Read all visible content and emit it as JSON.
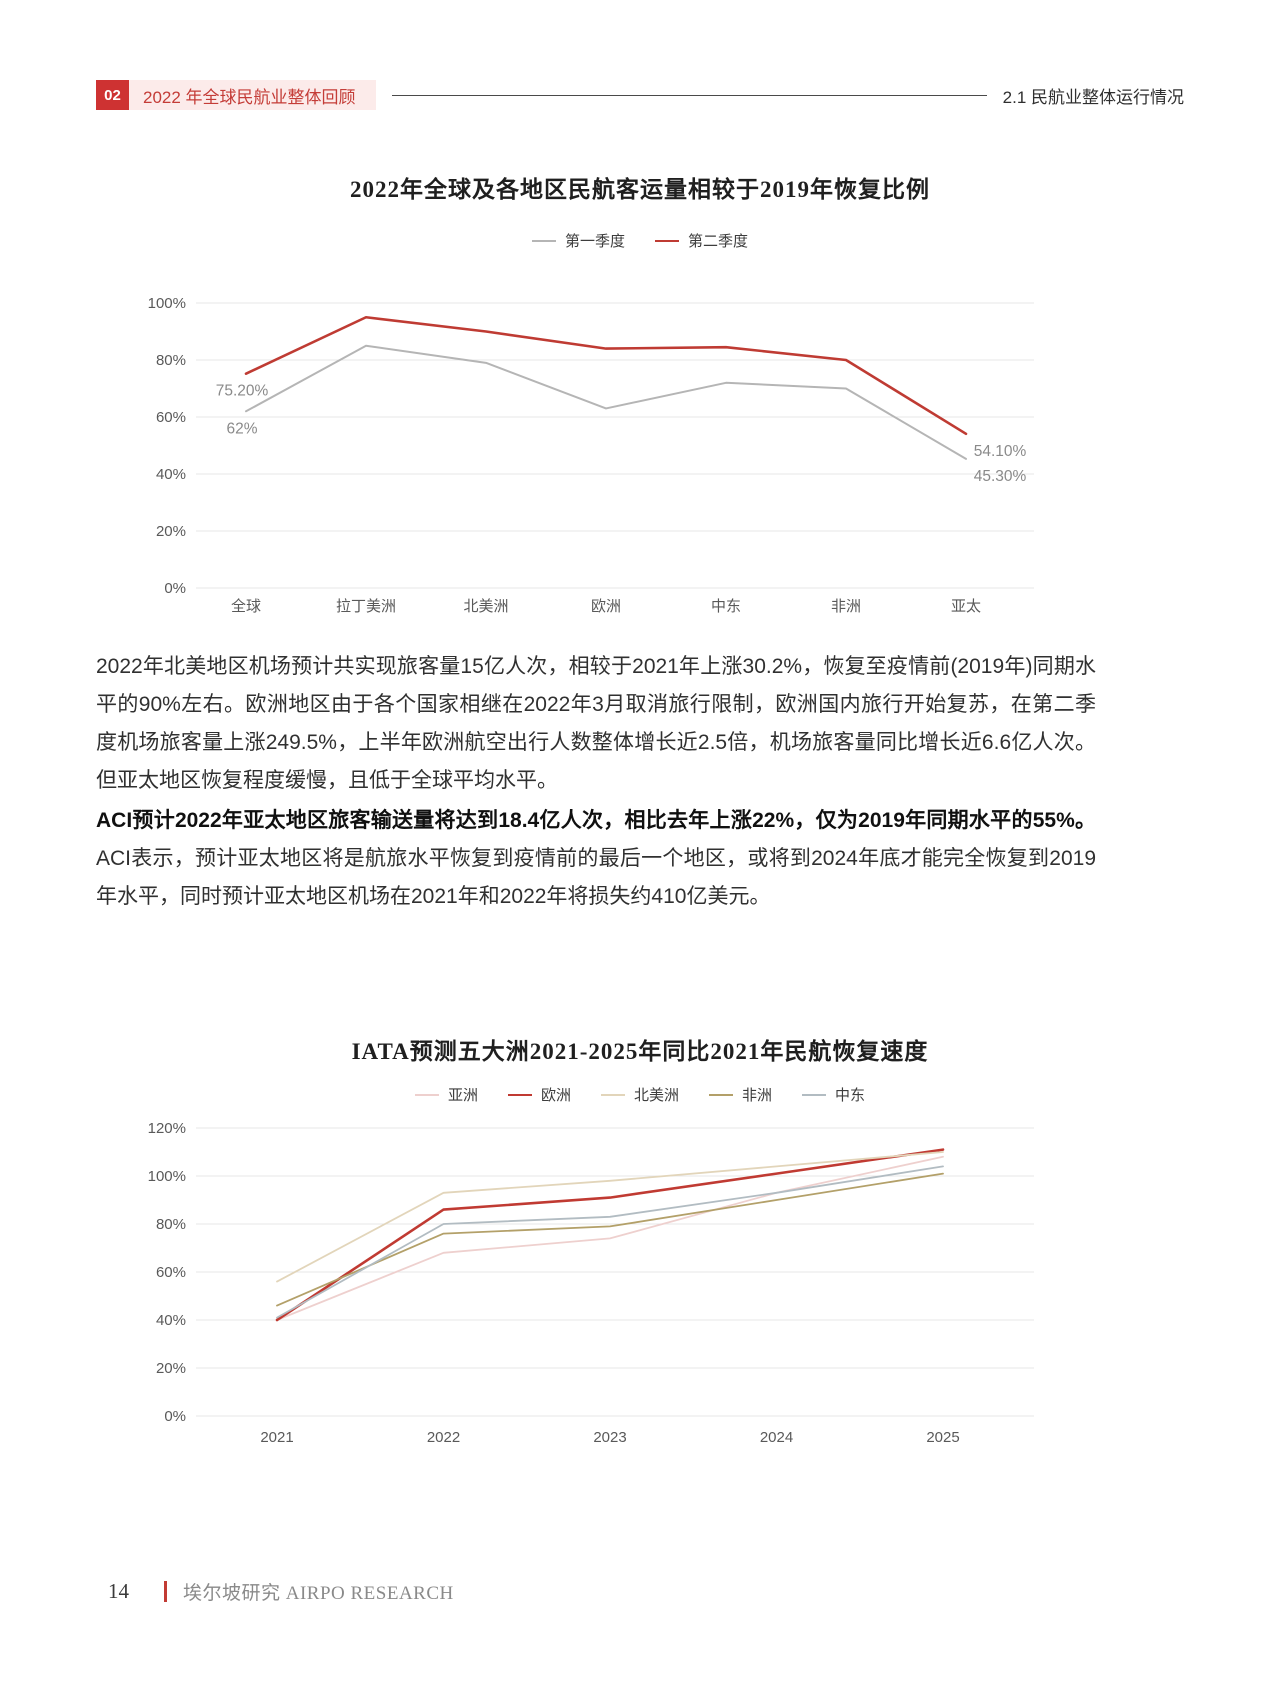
{
  "header": {
    "chapter_badge": "02",
    "chapter_title": "2022 年全球民航业整体回顾",
    "section_title": "2.1 民航业整体运行情况"
  },
  "chart_data": [
    {
      "type": "line",
      "title": "2022年全球及各地区民航客运量相较于2019年恢复比例",
      "categories": [
        "全球",
        "拉丁美洲",
        "北美洲",
        "欧洲",
        "中东",
        "非洲",
        "亚太"
      ],
      "ylim": [
        0,
        100
      ],
      "yticks": [
        0,
        20,
        40,
        60,
        80,
        100
      ],
      "ytick_suffix": "%",
      "grid": "horizontal",
      "legend_position": "top",
      "series": [
        {
          "name": "第一季度",
          "color": "#b5b5b5",
          "width": 2,
          "values": [
            62,
            85,
            79,
            63,
            72,
            70,
            45.3
          ],
          "point_labels": {
            "0": "62%",
            "6": "45.30%"
          }
        },
        {
          "name": "第二季度",
          "color": "#bf3b33",
          "width": 2.6,
          "values": [
            75.2,
            95,
            90,
            84,
            84.5,
            80,
            54.1
          ],
          "point_labels": {
            "0": "75.20%",
            "6": "54.10%"
          }
        }
      ]
    },
    {
      "type": "line",
      "title": "IATA预测五大洲2021-2025年同比2021年民航恢复速度",
      "categories": [
        "2021",
        "2022",
        "2023",
        "2024",
        "2025"
      ],
      "ylim": [
        0,
        120
      ],
      "yticks": [
        0,
        20,
        40,
        60,
        80,
        100,
        120
      ],
      "ytick_suffix": "%",
      "grid": "horizontal",
      "legend_position": "top",
      "series": [
        {
          "name": "亚洲",
          "color": "#eed0ce",
          "width": 1.8,
          "values": [
            40,
            68,
            74,
            93,
            108
          ]
        },
        {
          "name": "欧洲",
          "color": "#c03a32",
          "width": 2.6,
          "values": [
            40,
            86,
            91,
            101,
            111
          ]
        },
        {
          "name": "北美洲",
          "color": "#e2d5ba",
          "width": 1.8,
          "values": [
            56,
            93,
            98,
            104,
            110
          ]
        },
        {
          "name": "非洲",
          "color": "#b3a069",
          "width": 1.8,
          "values": [
            46,
            76,
            79,
            90,
            101
          ]
        },
        {
          "name": "中东",
          "color": "#b2bcc2",
          "width": 1.8,
          "values": [
            41,
            80,
            83,
            93,
            104
          ]
        }
      ]
    }
  ],
  "paragraphs": {
    "p1": "2022年北美地区机场预计共实现旅客量15亿人次，相较于2021年上涨30.2%，恢复至疫情前(2019年)同期水平的90%左右。欧洲地区由于各个国家相继在2022年3月取消旅行限制，欧洲国内旅行开始复苏，在第二季度机场旅客量上涨249.5%，上半年欧洲航空出行人数整体增长近2.5倍，机场旅客量同比增长近6.6亿人次。但亚太地区恢复程度缓慢，且低于全球平均水平。",
    "p2_bold": "ACI预计2022年亚太地区旅客输送量将达到18.4亿人次，相比去年上涨22%，仅为2019年同期水平的55%。",
    "p2_rest": "ACI表示，预计亚太地区将是航旅水平恢复到疫情前的最后一个地区，或将到2024年底才能完全恢复到2019年水平，同时预计亚太地区机场在2021年和2022年将损失约410亿美元。"
  },
  "footer": {
    "page_number": "14",
    "brand": "埃尔坡研究 AIRPO RESEARCH"
  }
}
